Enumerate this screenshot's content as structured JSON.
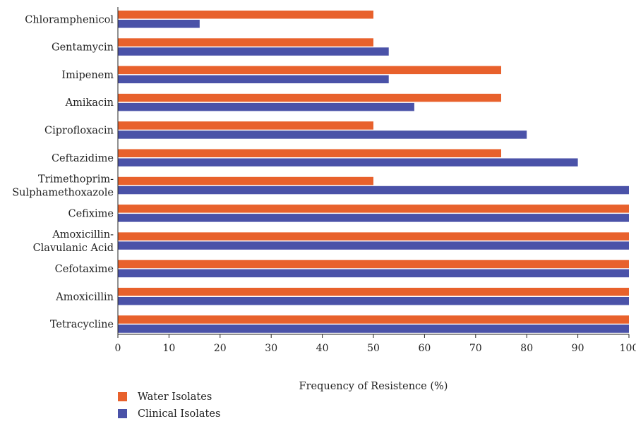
{
  "chart_data": {
    "type": "bar",
    "orientation": "horizontal",
    "categories": [
      [
        "Chloramphenicol"
      ],
      [
        "Gentamycin"
      ],
      [
        "Imipenem"
      ],
      [
        "Amikacin"
      ],
      [
        "Ciprofloxacin"
      ],
      [
        "Ceftazidime"
      ],
      [
        "Trimethoprim-",
        "Sulphamethoxazole"
      ],
      [
        "Cefixime"
      ],
      [
        "Amoxicillin-",
        "Clavulanic Acid"
      ],
      [
        "Cefotaxime"
      ],
      [
        "Amoxicillin"
      ],
      [
        "Tetracycline"
      ]
    ],
    "series": [
      {
        "name": "Water Isolates",
        "color": "#E8612C",
        "values": [
          50,
          50,
          75,
          75,
          50,
          75,
          50,
          100,
          100,
          100,
          100,
          100
        ]
      },
      {
        "name": "Clinical Isolates",
        "color": "#4A52A8",
        "values": [
          16,
          53,
          53,
          58,
          80,
          90,
          100,
          100,
          100,
          100,
          100,
          100
        ]
      }
    ],
    "xlabel": "Frequency of Resistence (%)",
    "ylabel": "",
    "title": "",
    "xlim": [
      0,
      100
    ],
    "xticks": [
      0,
      10,
      20,
      30,
      40,
      50,
      60,
      70,
      80,
      90,
      100
    ],
    "grid": false,
    "legend_position": "bottom-left"
  }
}
